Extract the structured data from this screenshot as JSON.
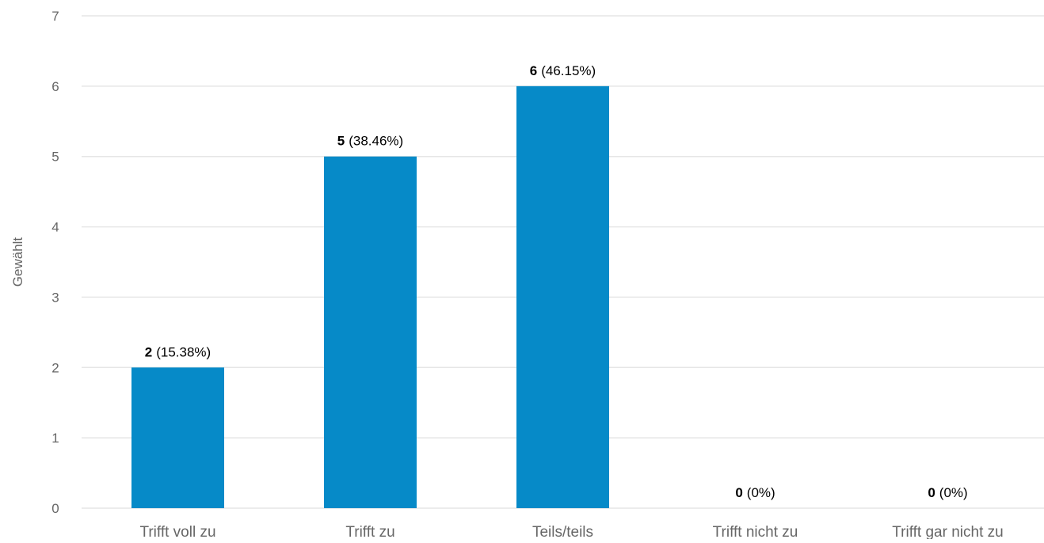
{
  "chart_data": {
    "type": "bar",
    "categories": [
      "Trifft voll zu",
      "Trifft zu",
      "Teils/teils",
      "Trifft nicht zu",
      "Trifft gar nicht zu"
    ],
    "values": [
      2,
      5,
      6,
      0,
      0
    ],
    "value_labels": [
      "2",
      "5",
      "6",
      "0",
      "0"
    ],
    "percent_labels": [
      "(15.38%)",
      "(38.46%)",
      "(46.15%)",
      "(0%)",
      "(0%)"
    ],
    "ylabel": "Gewählt",
    "xlabel": "",
    "ylim": [
      0,
      7
    ],
    "yticks": [
      "0",
      "1",
      "2",
      "3",
      "4",
      "5",
      "6",
      "7"
    ],
    "grid": true,
    "colors": {
      "bar": "#068ac8",
      "grid": "#e6e6e6",
      "tick_text": "#666666",
      "label_text": "#000000"
    }
  }
}
